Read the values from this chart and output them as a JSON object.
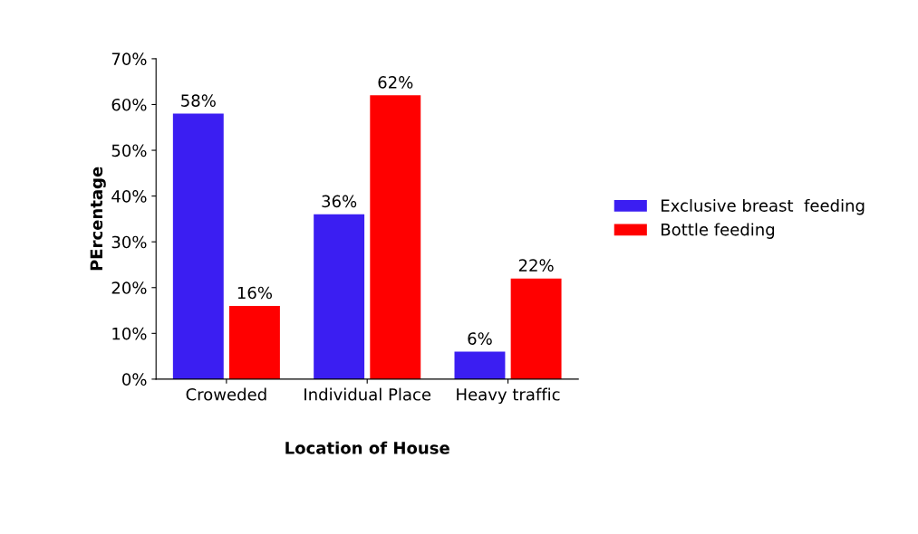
{
  "chart_data": {
    "type": "bar",
    "xlabel": "Location of House",
    "ylabel": "PErcentage",
    "categories": [
      "Croweded",
      "Individual Place",
      "Heavy traffic"
    ],
    "series": [
      {
        "name": "Exclusive breast  feeding",
        "color": "#3b1ef2",
        "values": [
          58,
          36,
          6
        ],
        "value_labels": [
          "58%",
          "36%",
          "6%"
        ]
      },
      {
        "name": "Bottle feeding",
        "color": "#ff0000",
        "values": [
          16,
          62,
          22
        ],
        "value_labels": [
          "16%",
          "62%",
          "22%"
        ]
      }
    ],
    "ylim": [
      0,
      70
    ],
    "yticks": [
      {
        "value": 0,
        "label": "0%"
      },
      {
        "value": 10,
        "label": "10%"
      },
      {
        "value": 20,
        "label": "20%"
      },
      {
        "value": 30,
        "label": "30%"
      },
      {
        "value": 40,
        "label": "40%"
      },
      {
        "value": 50,
        "label": "50%"
      },
      {
        "value": 60,
        "label": "60%"
      },
      {
        "value": 70,
        "label": "70%"
      }
    ],
    "grid": false,
    "legend": "right"
  }
}
